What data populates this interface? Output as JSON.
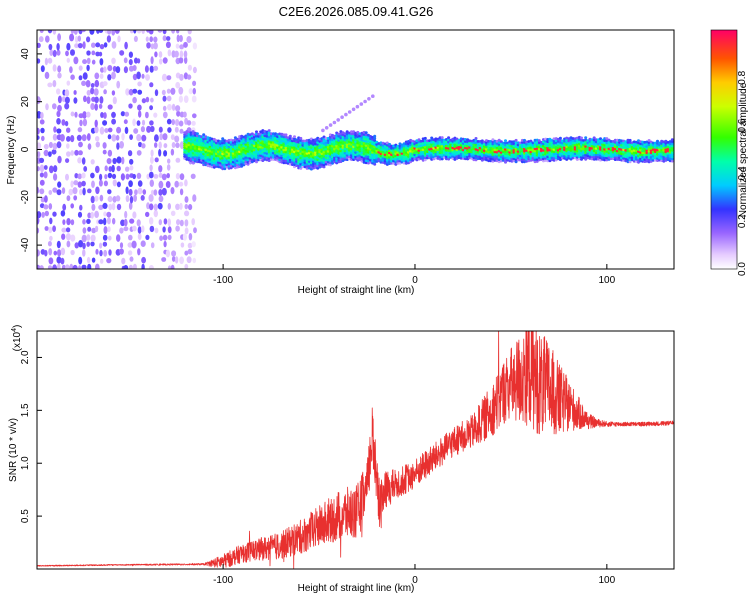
{
  "title": "C2E6.2026.085.09.41.G26",
  "chart_data": [
    {
      "type": "heatmap",
      "name": "spectrogram",
      "xlabel": "Height of straight line (km)",
      "ylabel": "Frequency (Hz)",
      "xlim": [
        -197,
        135
      ],
      "ylim": [
        -50,
        50
      ],
      "xticks": [
        -100,
        0,
        100
      ],
      "xtick_labels": [
        "-100",
        "0",
        "100"
      ],
      "yticks": [
        -40,
        -20,
        0,
        20,
        40
      ],
      "ytick_labels": [
        "-40",
        "-20",
        "0",
        "20",
        "40"
      ],
      "colorbar": {
        "label": "Normalized spectral amplitude",
        "range": [
          0,
          1
        ],
        "ticks": [
          0,
          0.2,
          0.4,
          0.6,
          0.8
        ],
        "tick_labels": [
          "0.0",
          "0.2",
          "0.4",
          "0.6",
          "0.8"
        ]
      },
      "regions": [
        {
          "desc": "broadband noise",
          "x_range": [
            -197,
            -115
          ],
          "y_range": [
            -50,
            50
          ],
          "amplitude": 0.15
        },
        {
          "desc": "signal band",
          "x_range": [
            -120,
            135
          ],
          "y_center": 0,
          "half_width": 3,
          "amplitude": 0.55
        }
      ]
    },
    {
      "type": "line",
      "name": "snr",
      "xlabel": "Height of straight line (km)",
      "ylabel": "SNR (10 * v/v)",
      "exponent_label": "(x10",
      "exponent": "4",
      "exponent_close": ")",
      "xlim": [
        -197,
        135
      ],
      "ylim": [
        0,
        22500
      ],
      "xticks": [
        -100,
        0,
        100
      ],
      "xtick_labels": [
        "-100",
        "0",
        "100"
      ],
      "yticks": [
        5000,
        10000,
        15000,
        20000
      ],
      "ytick_labels": [
        "0.5",
        "1.0",
        "1.5",
        "2.0"
      ],
      "series": [
        {
          "name": "SNR",
          "color": "#e8302f",
          "x": [
            -197,
            -150,
            -110,
            -100,
            -90,
            -80,
            -70,
            -60,
            -50,
            -40,
            -30,
            -25,
            -22,
            -20,
            -18,
            -15,
            -10,
            -5,
            0,
            10,
            20,
            30,
            40,
            45,
            50,
            55,
            60,
            65,
            70,
            75,
            80,
            90,
            95,
            100,
            110,
            120,
            135
          ],
          "values": [
            300,
            400,
            450,
            700,
            1500,
            1900,
            2200,
            3000,
            4000,
            5000,
            5500,
            7500,
            13000,
            8500,
            6000,
            7500,
            8000,
            8500,
            9000,
            10500,
            12000,
            13000,
            15000,
            16500,
            17500,
            18000,
            19000,
            17500,
            17000,
            16000,
            15500,
            14000,
            13800,
            13700,
            13700,
            13700,
            13800
          ],
          "noise": [
            50,
            60,
            80,
            700,
            900,
            1100,
            1300,
            1600,
            2000,
            2400,
            2600,
            2600,
            3000,
            2600,
            2600,
            1800,
            1500,
            1400,
            1400,
            1400,
            1400,
            1600,
            2500,
            3000,
            3500,
            4500,
            5500,
            5000,
            4500,
            3500,
            2500,
            800,
            400,
            250,
            200,
            200,
            200
          ]
        }
      ]
    }
  ]
}
